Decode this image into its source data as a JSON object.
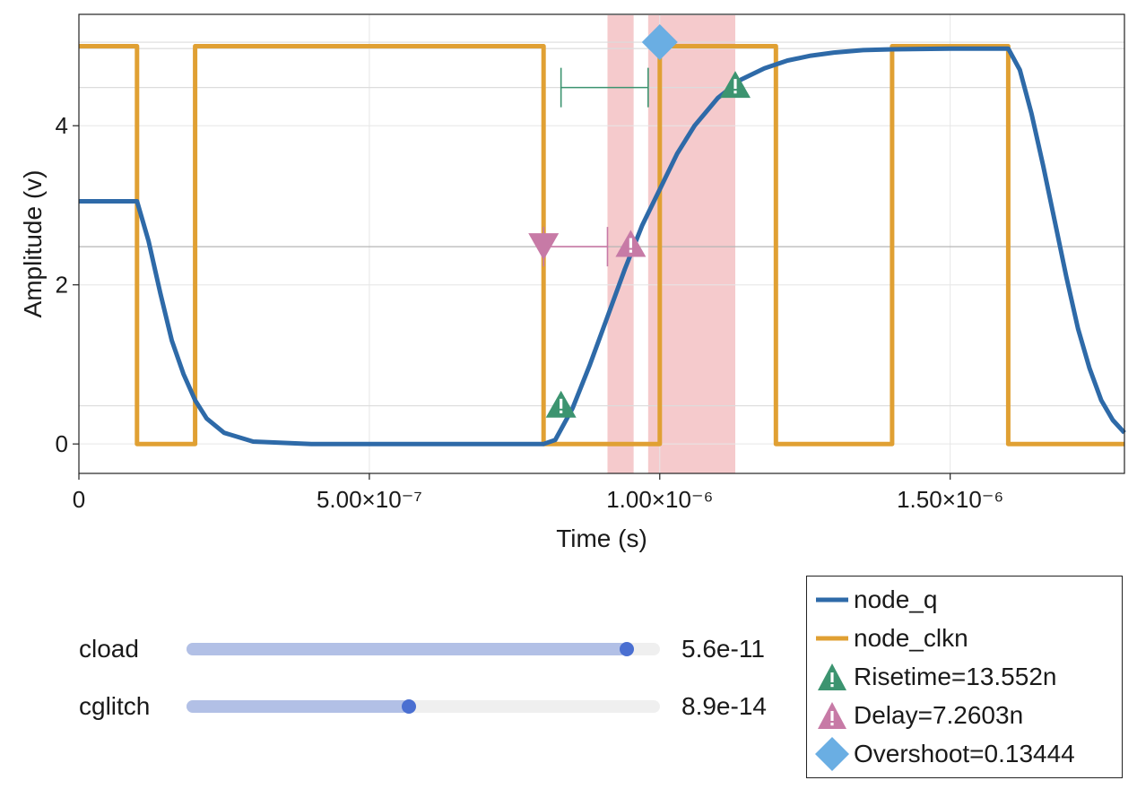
{
  "chart_data": {
    "type": "line",
    "xlabel": "Time (s)",
    "ylabel": "Amplitude (v)",
    "xlim": [
      0,
      1.8e-06
    ],
    "ylim": [
      -0.37,
      5.4
    ],
    "x_ticks": [
      {
        "value": 0,
        "label": "0"
      },
      {
        "value": 5e-07,
        "label": "5.00×10⁻⁷"
      },
      {
        "value": 1e-06,
        "label": "1.00×10⁻⁶"
      },
      {
        "value": 1.5e-06,
        "label": "1.50×10⁻⁶"
      }
    ],
    "y_ticks": [
      {
        "value": 0,
        "label": "0"
      },
      {
        "value": 2,
        "label": "2"
      },
      {
        "value": 4,
        "label": "4"
      }
    ],
    "grid": true,
    "legend_position": "bottom-right",
    "series": [
      {
        "name": "node_q",
        "color": "#2e6aa8",
        "x": [
          0,
          1e-07,
          1.2e-07,
          1.4e-07,
          1.6e-07,
          1.8e-07,
          2e-07,
          2.2e-07,
          2.5e-07,
          3e-07,
          4e-07,
          6e-07,
          8e-07,
          8.2e-07,
          8.5e-07,
          8.8e-07,
          9.1e-07,
          9.4e-07,
          9.7e-07,
          1e-06,
          1.03e-06,
          1.06e-06,
          1.1e-06,
          1.14e-06,
          1.18e-06,
          1.22e-06,
          1.26e-06,
          1.3e-06,
          1.35e-06,
          1.4e-06,
          1.5e-06,
          1.6e-06,
          1.62e-06,
          1.64e-06,
          1.66e-06,
          1.68e-06,
          1.7e-06,
          1.72e-06,
          1.74e-06,
          1.76e-06,
          1.78e-06,
          1.8e-06
        ],
        "values": [
          3.05,
          3.05,
          2.55,
          1.9,
          1.3,
          0.88,
          0.55,
          0.32,
          0.14,
          0.03,
          0.0,
          0.0,
          0.0,
          0.05,
          0.45,
          1.0,
          1.6,
          2.2,
          2.75,
          3.2,
          3.65,
          4.0,
          4.35,
          4.58,
          4.72,
          4.82,
          4.88,
          4.92,
          4.95,
          4.96,
          4.97,
          4.97,
          4.7,
          4.15,
          3.5,
          2.8,
          2.1,
          1.45,
          0.95,
          0.55,
          0.3,
          0.14
        ]
      },
      {
        "name": "node_clkn",
        "color": "#e0a033",
        "x": [
          0,
          1e-07,
          1e-07,
          2e-07,
          2e-07,
          8e-07,
          8e-07,
          1e-06,
          1e-06,
          1.2e-06,
          1.2e-06,
          1.4e-06,
          1.4e-06,
          1.6e-06,
          1.6e-06,
          1.8e-06
        ],
        "values": [
          5,
          5,
          0,
          0,
          5,
          5,
          0,
          0,
          5,
          5,
          0,
          0,
          5,
          5,
          0,
          0
        ]
      }
    ],
    "shaded_regions": [
      {
        "x0": 9.1e-07,
        "x1": 9.55e-07,
        "color": "#f4c4c6"
      },
      {
        "x0": 9.8e-07,
        "x1": 1.13e-06,
        "color": "#f4c4c6"
      }
    ],
    "reference_lines": [
      2.48,
      0.48,
      4.48,
      5.05,
      4.97
    ],
    "markers": [
      {
        "name": "Risetime=13.552n",
        "symbol": "warn-triangle",
        "color": "#3c9470",
        "points": [
          {
            "x": 8.3e-07,
            "y": 0.5
          },
          {
            "x": 1.13e-06,
            "y": 4.52
          }
        ]
      },
      {
        "name": "Delay=7.2603n",
        "symbol": "warn-triangle",
        "color": "#c77aa6",
        "points": [
          {
            "x": 8e-07,
            "y": 2.48,
            "down": true
          },
          {
            "x": 9.5e-07,
            "y": 2.52
          }
        ]
      },
      {
        "name": "Overshoot=0.13444",
        "symbol": "diamond",
        "color": "#6aaee3",
        "points": [
          {
            "x": 1e-06,
            "y": 5.05
          }
        ]
      }
    ],
    "interval_bars": [
      {
        "x0": 8.3e-07,
        "x1": 9.8e-07,
        "y": 4.48,
        "color": "#3c9470"
      },
      {
        "x0": 8e-07,
        "x1": 9.1e-07,
        "y": 2.48,
        "color": "#c77aa6"
      }
    ]
  },
  "sliders": [
    {
      "label": "cload",
      "value_text": "5.6e-11",
      "fraction": 0.93
    },
    {
      "label": "cglitch",
      "value_text": "8.9e-14",
      "fraction": 0.47
    }
  ],
  "legend": {
    "entries": [
      {
        "label": "node_q",
        "symbol": "line",
        "color": "#2e6aa8"
      },
      {
        "label": "node_clkn",
        "symbol": "line",
        "color": "#e0a033"
      },
      {
        "label": "Risetime=13.552n",
        "symbol": "warn-triangle",
        "color": "#3c9470"
      },
      {
        "label": "Delay=7.2603n",
        "symbol": "warn-triangle",
        "color": "#c77aa6"
      },
      {
        "label": "Overshoot=0.13444",
        "symbol": "diamond",
        "color": "#6aaee3"
      }
    ]
  }
}
